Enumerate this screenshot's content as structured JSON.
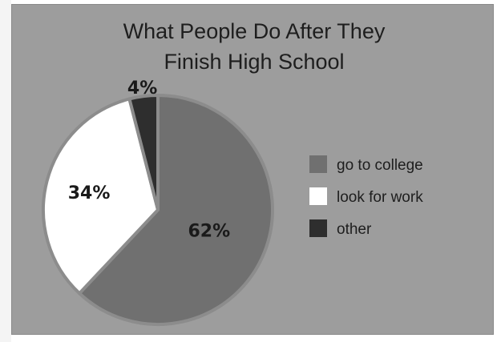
{
  "chart_data": {
    "type": "pie",
    "title_lines": [
      "What People Do After They",
      "Finish High School"
    ],
    "slices": [
      {
        "label": "go to college",
        "value": 62,
        "value_label": "62%",
        "color": "#707070"
      },
      {
        "label": "look for work",
        "value": 34,
        "value_label": "34%",
        "color": "#ffffff"
      },
      {
        "label": "other",
        "value": 4,
        "value_label": "4%",
        "color": "#2e2e2e"
      }
    ],
    "legend_position": "right"
  }
}
